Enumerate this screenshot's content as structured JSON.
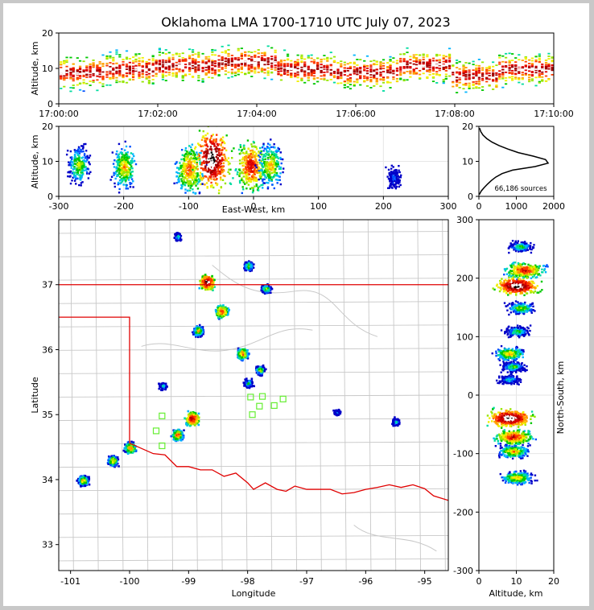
{
  "chart_data": [
    {
      "id": "time_height",
      "type": "heatmap",
      "title": "Oklahoma LMA 1700-1710 UTC July 07, 2023",
      "xlabel": "",
      "ylabel": "Altitude, km",
      "xticks": [
        "17:00:00",
        "17:02:00",
        "17:04:00",
        "17:06:00",
        "17:08:00",
        "17:10:00"
      ],
      "xlim_minutes": [
        0,
        10
      ],
      "yticks": [
        "0",
        "10",
        "20"
      ],
      "ylim": [
        0,
        20
      ],
      "description_points": [
        {
          "t_min": 0.5,
          "alt_km": 9
        },
        {
          "t_min": 1.3,
          "alt_km": 10
        },
        {
          "t_min": 2.5,
          "alt_km": 11
        },
        {
          "t_min": 3.8,
          "alt_km": 12
        },
        {
          "t_min": 5.0,
          "alt_km": 10
        },
        {
          "t_min": 6.2,
          "alt_km": 9
        },
        {
          "t_min": 7.5,
          "alt_km": 11
        },
        {
          "t_min": 8.3,
          "alt_km": 8
        },
        {
          "t_min": 9.4,
          "alt_km": 10
        }
      ]
    },
    {
      "id": "ew_height",
      "type": "heatmap",
      "xlabel": "East-West, km",
      "ylabel": "Altitude, km",
      "xticks": [
        "-300",
        "-200",
        "-100",
        "0",
        "100",
        "200",
        "300"
      ],
      "xlim": [
        -300,
        300
      ],
      "yticks": [
        "0",
        "10",
        "20"
      ],
      "ylim": [
        0,
        20
      ],
      "clusters": [
        {
          "x_km": -270,
          "alt_km": 9,
          "intensity": 0.5
        },
        {
          "x_km": -200,
          "alt_km": 8.5,
          "intensity": 0.6
        },
        {
          "x_km": -100,
          "alt_km": 8,
          "intensity": 0.7
        },
        {
          "x_km": -65,
          "alt_km": 11,
          "intensity": 1.0
        },
        {
          "x_km": -5,
          "alt_km": 9,
          "intensity": 0.8
        },
        {
          "x_km": 25,
          "alt_km": 9,
          "intensity": 0.6
        },
        {
          "x_km": 215,
          "alt_km": 5.5,
          "intensity": 0.2
        }
      ]
    },
    {
      "id": "altitude_histogram",
      "type": "line",
      "xticks": [
        "0",
        "1000",
        "2000"
      ],
      "xlim": [
        0,
        2000
      ],
      "yticks": [
        "0",
        "10",
        "20"
      ],
      "ylim": [
        0,
        20
      ],
      "annotation": "66,186 sources",
      "points": [
        {
          "alt": 0.5,
          "count": 10
        },
        {
          "alt": 1.5,
          "count": 60
        },
        {
          "alt": 2.5,
          "count": 140
        },
        {
          "alt": 3.5,
          "count": 230
        },
        {
          "alt": 4.5,
          "count": 330
        },
        {
          "alt": 5.5,
          "count": 450
        },
        {
          "alt": 6.5,
          "count": 620
        },
        {
          "alt": 7.5,
          "count": 900
        },
        {
          "alt": 8.5,
          "count": 1500
        },
        {
          "alt": 9.5,
          "count": 1850
        },
        {
          "alt": 10.5,
          "count": 1780
        },
        {
          "alt": 11.5,
          "count": 1450
        },
        {
          "alt": 12.5,
          "count": 1050
        },
        {
          "alt": 13.5,
          "count": 780
        },
        {
          "alt": 14.5,
          "count": 540
        },
        {
          "alt": 15.5,
          "count": 350
        },
        {
          "alt": 16.5,
          "count": 210
        },
        {
          "alt": 17.5,
          "count": 110
        },
        {
          "alt": 18.5,
          "count": 50
        },
        {
          "alt": 19.5,
          "count": 20
        }
      ]
    },
    {
      "id": "plan_view",
      "type": "heatmap",
      "xlabel": "Longitude",
      "ylabel": "Latitude",
      "xticks": [
        "-101",
        "-100",
        "-99",
        "-98",
        "-97",
        "-96",
        "-95"
      ],
      "xlim": [
        -101.2,
        -94.6
      ],
      "yticks": [
        "33",
        "34",
        "35",
        "36",
        "37"
      ],
      "ylim": [
        32.6,
        38.0
      ],
      "clusters": [
        {
          "lon": -99.2,
          "lat": 37.75,
          "intensity": 0.3
        },
        {
          "lon": -98.7,
          "lat": 37.05,
          "intensity": 1.0
        },
        {
          "lon": -98.45,
          "lat": 36.6,
          "intensity": 0.8
        },
        {
          "lon": -98.0,
          "lat": 37.3,
          "intensity": 0.5
        },
        {
          "lon": -97.7,
          "lat": 36.95,
          "intensity": 0.5
        },
        {
          "lon": -98.85,
          "lat": 36.3,
          "intensity": 0.6
        },
        {
          "lon": -98.1,
          "lat": 35.95,
          "intensity": 0.7
        },
        {
          "lon": -97.8,
          "lat": 35.7,
          "intensity": 0.5
        },
        {
          "lon": -98.0,
          "lat": 35.5,
          "intensity": 0.4
        },
        {
          "lon": -98.95,
          "lat": 34.95,
          "intensity": 0.9
        },
        {
          "lon": -99.2,
          "lat": 34.7,
          "intensity": 0.7
        },
        {
          "lon": -99.45,
          "lat": 35.45,
          "intensity": 0.3
        },
        {
          "lon": -100.0,
          "lat": 34.5,
          "intensity": 0.7
        },
        {
          "lon": -100.3,
          "lat": 34.3,
          "intensity": 0.6
        },
        {
          "lon": -100.8,
          "lat": 34.0,
          "intensity": 0.6
        },
        {
          "lon": -96.5,
          "lat": 35.05,
          "intensity": 0.2
        },
        {
          "lon": -95.5,
          "lat": 34.9,
          "intensity": 0.3
        }
      ],
      "stations": [
        {
          "lon": -99.45,
          "lat": 34.98
        },
        {
          "lon": -99.55,
          "lat": 34.75
        },
        {
          "lon": -99.45,
          "lat": 34.52
        },
        {
          "lon": -97.95,
          "lat": 35.27
        },
        {
          "lon": -97.75,
          "lat": 35.28
        },
        {
          "lon": -97.4,
          "lat": 35.24
        },
        {
          "lon": -97.55,
          "lat": 35.14
        },
        {
          "lon": -97.8,
          "lat": 35.13
        },
        {
          "lon": -97.92,
          "lat": 35.0
        }
      ]
    },
    {
      "id": "ns_height",
      "type": "heatmap",
      "xlabel": "Altitude, km",
      "ylabel": "North-South, km",
      "xticks": [
        "0",
        "10",
        "20"
      ],
      "xlim": [
        0,
        20
      ],
      "yticks": [
        "300",
        "200",
        "100",
        "0",
        "-100",
        "-200",
        "-300"
      ],
      "ylim": [
        -300,
        300
      ],
      "clusters": [
        {
          "ns_km": 255,
          "alt_km": 11,
          "intensity": 0.4
        },
        {
          "ns_km": 215,
          "alt_km": 12,
          "intensity": 0.8
        },
        {
          "ns_km": 188,
          "alt_km": 10,
          "intensity": 1.0
        },
        {
          "ns_km": 150,
          "alt_km": 11,
          "intensity": 0.5
        },
        {
          "ns_km": 110,
          "alt_km": 10,
          "intensity": 0.4
        },
        {
          "ns_km": 72,
          "alt_km": 8,
          "intensity": 0.6
        },
        {
          "ns_km": 50,
          "alt_km": 9,
          "intensity": 0.4
        },
        {
          "ns_km": 28,
          "alt_km": 8,
          "intensity": 0.3
        },
        {
          "ns_km": -38,
          "alt_km": 8,
          "intensity": 1.0
        },
        {
          "ns_km": -70,
          "alt_km": 9,
          "intensity": 0.8
        },
        {
          "ns_km": -95,
          "alt_km": 9,
          "intensity": 0.6
        },
        {
          "ns_km": -140,
          "alt_km": 10,
          "intensity": 0.6
        }
      ]
    }
  ]
}
